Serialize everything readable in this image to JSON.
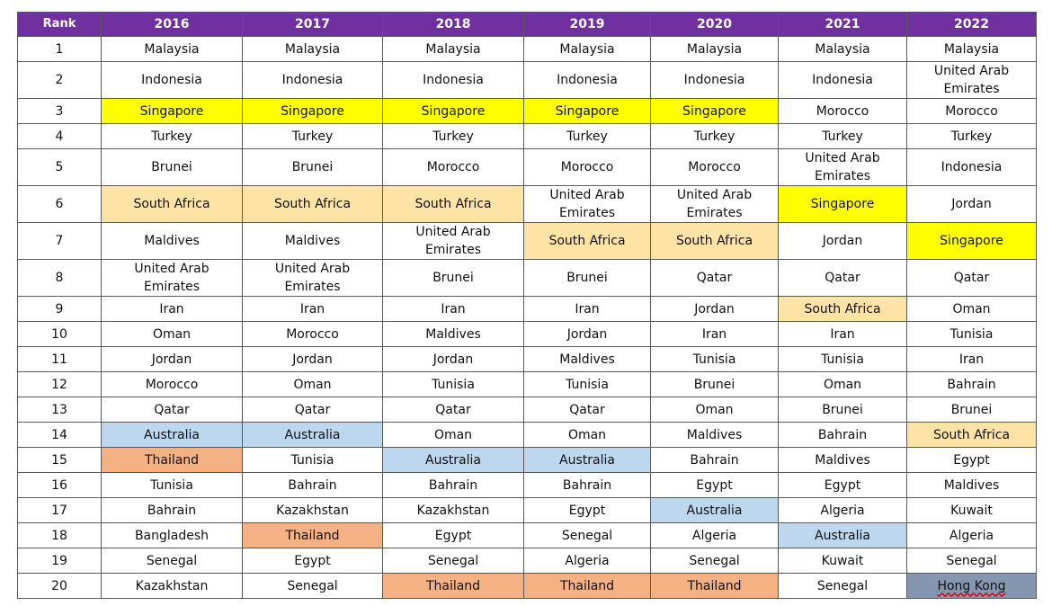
{
  "table": {
    "columns": [
      "Rank",
      "2016",
      "2017",
      "2018",
      "2019",
      "2020",
      "2021",
      "2022"
    ],
    "rows": [
      {
        "rank": "1",
        "cells": [
          {
            "text": "Malaysia"
          },
          {
            "text": "Malaysia"
          },
          {
            "text": "Malaysia"
          },
          {
            "text": "Malaysia"
          },
          {
            "text": "Malaysia"
          },
          {
            "text": "Malaysia"
          },
          {
            "text": "Malaysia"
          }
        ]
      },
      {
        "rank": "2",
        "cells": [
          {
            "text": "Indonesia"
          },
          {
            "text": "Indonesia"
          },
          {
            "text": "Indonesia"
          },
          {
            "text": "Indonesia"
          },
          {
            "text": "Indonesia"
          },
          {
            "text": "Indonesia"
          },
          {
            "text": "United Arab Emirates"
          }
        ]
      },
      {
        "rank": "3",
        "cells": [
          {
            "text": "Singapore",
            "color": "yellow"
          },
          {
            "text": "Singapore",
            "color": "yellow"
          },
          {
            "text": "Singapore",
            "color": "yellow"
          },
          {
            "text": "Singapore",
            "color": "yellow"
          },
          {
            "text": "Singapore",
            "color": "yellow"
          },
          {
            "text": "Morocco"
          },
          {
            "text": "Morocco"
          }
        ]
      },
      {
        "rank": "4",
        "cells": [
          {
            "text": "Turkey"
          },
          {
            "text": "Turkey"
          },
          {
            "text": "Turkey"
          },
          {
            "text": "Turkey"
          },
          {
            "text": "Turkey"
          },
          {
            "text": "Turkey"
          },
          {
            "text": "Turkey"
          }
        ]
      },
      {
        "rank": "5",
        "cells": [
          {
            "text": "Brunei"
          },
          {
            "text": "Brunei"
          },
          {
            "text": "Morocco"
          },
          {
            "text": "Morocco"
          },
          {
            "text": "Morocco"
          },
          {
            "text": "United Arab Emirates"
          },
          {
            "text": "Indonesia"
          }
        ]
      },
      {
        "rank": "6",
        "cells": [
          {
            "text": "South Africa",
            "color": "peach"
          },
          {
            "text": "South Africa",
            "color": "peach"
          },
          {
            "text": "South Africa",
            "color": "peach"
          },
          {
            "text": "United Arab Emirates"
          },
          {
            "text": "United Arab Emirates"
          },
          {
            "text": "Singapore",
            "color": "yellow"
          },
          {
            "text": "Jordan"
          }
        ]
      },
      {
        "rank": "7",
        "cells": [
          {
            "text": "Maldives"
          },
          {
            "text": "Maldives"
          },
          {
            "text": "United Arab Emirates"
          },
          {
            "text": "South Africa",
            "color": "peach"
          },
          {
            "text": "South Africa",
            "color": "peach"
          },
          {
            "text": "Jordan"
          },
          {
            "text": "Singapore",
            "color": "yellow"
          }
        ]
      },
      {
        "rank": "8",
        "cells": [
          {
            "text": "United Arab Emirates"
          },
          {
            "text": "United Arab Emirates"
          },
          {
            "text": "Brunei"
          },
          {
            "text": "Brunei"
          },
          {
            "text": "Qatar"
          },
          {
            "text": "Qatar"
          },
          {
            "text": "Qatar"
          }
        ]
      },
      {
        "rank": "9",
        "cells": [
          {
            "text": "Iran"
          },
          {
            "text": "Iran"
          },
          {
            "text": "Iran"
          },
          {
            "text": "Iran"
          },
          {
            "text": "Jordan"
          },
          {
            "text": "South Africa",
            "color": "peach"
          },
          {
            "text": "Oman"
          }
        ]
      },
      {
        "rank": "10",
        "cells": [
          {
            "text": "Oman"
          },
          {
            "text": "Morocco"
          },
          {
            "text": "Maldives"
          },
          {
            "text": "Jordan"
          },
          {
            "text": "Iran"
          },
          {
            "text": "Iran"
          },
          {
            "text": "Tunisia"
          }
        ]
      },
      {
        "rank": "11",
        "cells": [
          {
            "text": "Jordan"
          },
          {
            "text": "Jordan"
          },
          {
            "text": "Jordan"
          },
          {
            "text": "Maldives"
          },
          {
            "text": "Tunisia"
          },
          {
            "text": "Tunisia"
          },
          {
            "text": "Iran"
          }
        ]
      },
      {
        "rank": "12",
        "cells": [
          {
            "text": "Morocco"
          },
          {
            "text": "Oman"
          },
          {
            "text": "Tunisia"
          },
          {
            "text": "Tunisia"
          },
          {
            "text": "Brunei"
          },
          {
            "text": "Oman"
          },
          {
            "text": "Bahrain"
          }
        ]
      },
      {
        "rank": "13",
        "cells": [
          {
            "text": "Qatar"
          },
          {
            "text": "Qatar"
          },
          {
            "text": "Qatar"
          },
          {
            "text": "Qatar"
          },
          {
            "text": "Oman"
          },
          {
            "text": "Brunei"
          },
          {
            "text": "Brunei"
          }
        ]
      },
      {
        "rank": "14",
        "cells": [
          {
            "text": "Australia",
            "color": "blue"
          },
          {
            "text": "Australia",
            "color": "blue"
          },
          {
            "text": "Oman"
          },
          {
            "text": "Oman"
          },
          {
            "text": "Maldives"
          },
          {
            "text": "Bahrain"
          },
          {
            "text": "South Africa",
            "color": "peach"
          }
        ]
      },
      {
        "rank": "15",
        "cells": [
          {
            "text": "Thailand",
            "color": "orange"
          },
          {
            "text": "Tunisia"
          },
          {
            "text": "Australia",
            "color": "blue"
          },
          {
            "text": "Australia",
            "color": "blue"
          },
          {
            "text": "Bahrain"
          },
          {
            "text": "Maldives"
          },
          {
            "text": "Egypt"
          }
        ]
      },
      {
        "rank": "16",
        "cells": [
          {
            "text": "Tunisia"
          },
          {
            "text": "Bahrain"
          },
          {
            "text": "Bahrain"
          },
          {
            "text": "Bahrain"
          },
          {
            "text": "Egypt"
          },
          {
            "text": "Egypt"
          },
          {
            "text": "Maldives"
          }
        ]
      },
      {
        "rank": "17",
        "cells": [
          {
            "text": "Bahrain"
          },
          {
            "text": "Kazakhstan"
          },
          {
            "text": "Kazakhstan"
          },
          {
            "text": "Egypt"
          },
          {
            "text": "Australia",
            "color": "blue"
          },
          {
            "text": "Algeria"
          },
          {
            "text": "Kuwait"
          }
        ]
      },
      {
        "rank": "18",
        "cells": [
          {
            "text": "Bangladesh"
          },
          {
            "text": "Thailand",
            "color": "orange"
          },
          {
            "text": "Egypt"
          },
          {
            "text": "Senegal"
          },
          {
            "text": "Algeria"
          },
          {
            "text": "Australia",
            "color": "blue"
          },
          {
            "text": "Algeria"
          }
        ]
      },
      {
        "rank": "19",
        "cells": [
          {
            "text": "Senegal"
          },
          {
            "text": "Egypt"
          },
          {
            "text": "Senegal"
          },
          {
            "text": "Algeria"
          },
          {
            "text": "Senegal"
          },
          {
            "text": "Kuwait"
          },
          {
            "text": "Senegal"
          }
        ]
      },
      {
        "rank": "20",
        "cells": [
          {
            "text": "Kazakhstan"
          },
          {
            "text": "Senegal"
          },
          {
            "text": "Thailand",
            "color": "orange"
          },
          {
            "text": "Thailand",
            "color": "orange"
          },
          {
            "text": "Thailand",
            "color": "orange"
          },
          {
            "text": "Senegal"
          },
          {
            "text": "Hong Kong",
            "color": "steel",
            "squiggle": true
          }
        ]
      }
    ]
  },
  "colors": {
    "header_bg": "#7030a0",
    "header_text": "#ffffff",
    "grid_line": "#5a5a5a",
    "yellow": "#ffff00",
    "peach": "#fde3a6",
    "blue": "#bdd7ee",
    "orange": "#f4b184",
    "steel": "#8497b0",
    "spellcheck_underline": "#d00000"
  }
}
